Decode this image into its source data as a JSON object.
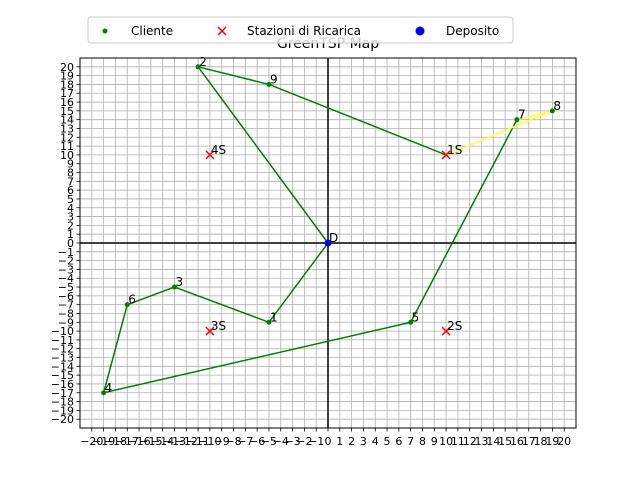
{
  "chart_data": {
    "type": "scatter",
    "title": "GreenTSP Map",
    "xlim": [
      -21,
      21
    ],
    "ylim": [
      -21,
      21
    ],
    "grid": true,
    "legend_position": "top-center",
    "legend": [
      {
        "label": "Cliente",
        "marker": "dot",
        "color": "#008000"
      },
      {
        "label": "Stazioni di Ricarica",
        "marker": "x",
        "color": "#ff0000"
      },
      {
        "label": "Deposito",
        "marker": "circle",
        "color": "#0000ff"
      }
    ],
    "x_ticks": [
      -20,
      -19,
      -18,
      -17,
      -16,
      -15,
      -14,
      -13,
      -12,
      -11,
      -10,
      -9,
      -8,
      -7,
      -6,
      -5,
      -4,
      -3,
      -2,
      -1,
      0,
      1,
      2,
      3,
      4,
      5,
      6,
      7,
      8,
      9,
      10,
      11,
      12,
      13,
      14,
      15,
      16,
      17,
      18,
      19,
      20
    ],
    "y_ticks": [
      -20,
      -19,
      -18,
      -17,
      -16,
      -15,
      -14,
      -13,
      -12,
      -11,
      -10,
      -9,
      -8,
      -7,
      -6,
      -5,
      -4,
      -3,
      -2,
      -1,
      0,
      1,
      2,
      3,
      4,
      5,
      6,
      7,
      8,
      9,
      10,
      11,
      12,
      13,
      14,
      15,
      16,
      17,
      18,
      19,
      20
    ],
    "customers": [
      {
        "label": "1",
        "x": -5,
        "y": -9
      },
      {
        "label": "2",
        "x": -11,
        "y": 20
      },
      {
        "label": "3",
        "x": -13,
        "y": -5
      },
      {
        "label": "4",
        "x": -19,
        "y": -17
      },
      {
        "label": "5",
        "x": 7,
        "y": -9
      },
      {
        "label": "6",
        "x": -17,
        "y": -7
      },
      {
        "label": "7",
        "x": 16,
        "y": 14
      },
      {
        "label": "8",
        "x": 19,
        "y": 15
      },
      {
        "label": "9",
        "x": -5,
        "y": 18
      }
    ],
    "stations": [
      {
        "label": "1S",
        "x": 10,
        "y": 10
      },
      {
        "label": "2S",
        "x": 10,
        "y": -10
      },
      {
        "label": "3S",
        "x": -10,
        "y": -10
      },
      {
        "label": "4S",
        "x": -10,
        "y": 10
      }
    ],
    "depot": {
      "label": "D",
      "x": 0,
      "y": 0
    },
    "route_segments": [
      {
        "color": "#008000",
        "points": [
          [
            0,
            0
          ],
          [
            -5,
            -9
          ],
          [
            -13,
            -5
          ],
          [
            -17,
            -7
          ],
          [
            -19,
            -17
          ],
          [
            7,
            -9
          ],
          [
            16,
            14
          ]
        ]
      },
      {
        "color": "#ffff33",
        "points": [
          [
            16,
            14
          ],
          [
            19,
            15
          ],
          [
            10,
            10
          ]
        ]
      },
      {
        "color": "#008000",
        "points": [
          [
            10,
            10
          ],
          [
            -5,
            18
          ],
          [
            -11,
            20
          ],
          [
            0,
            0
          ]
        ]
      }
    ]
  }
}
